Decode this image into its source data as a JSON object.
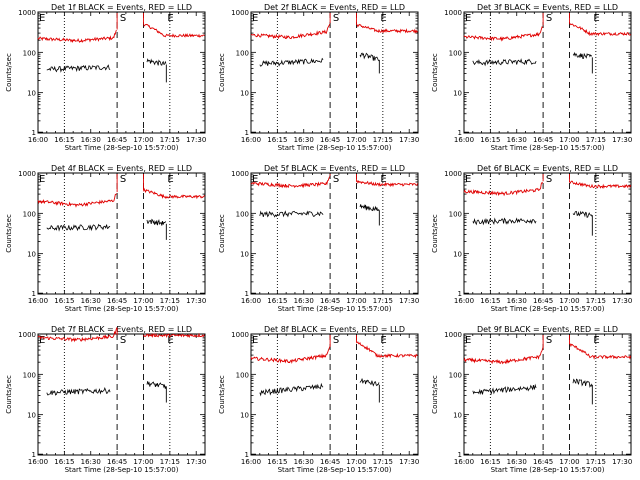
{
  "chart_data": {
    "type": "line",
    "layout": "3x3 grid",
    "shared": {
      "xlabel": "Start Time (28-Sep-10 15:57:00)",
      "ylabel": "Counts/sec",
      "xticks": [
        "16:00",
        "16:15",
        "16:30",
        "16:45",
        "17:00",
        "17:15",
        "17:30"
      ],
      "xlim_minutes_after_16_00": [
        0,
        95
      ],
      "yscale": "log",
      "ylim": [
        1,
        1000
      ],
      "yticks": [
        1,
        10,
        100,
        1000
      ],
      "dotted_verticals_min": [
        15,
        75
      ],
      "dashed_verticals_min": [
        45,
        60
      ],
      "markers": [
        {
          "label": "E",
          "at_min": 0
        },
        {
          "label": "S",
          "at_min": 46
        },
        {
          "label": "E",
          "at_min": 73
        }
      ],
      "gap_min": [
        45,
        60
      ],
      "series_colors": {
        "events": "#000000",
        "lld": "#e00000"
      }
    },
    "panels": [
      {
        "title": "Det 1f BLACK = Events, RED = LLD",
        "lld": {
          "start": 220,
          "mid": 195,
          "end": 230,
          "post_peak": 500,
          "post_end": 260
        },
        "events": {
          "start": 38,
          "end": 43,
          "after_start": 62,
          "after_end": 50,
          "drop_to": 18
        }
      },
      {
        "title": "Det 2f BLACK = Events, RED = LLD",
        "lld": {
          "start": 270,
          "mid": 235,
          "end": 330,
          "post_peak": 480,
          "post_end": 340
        },
        "events": {
          "start": 52,
          "end": 62,
          "after_start": 90,
          "after_end": 65,
          "drop_to": 30
        }
      },
      {
        "title": "Det 3f BLACK = Events, RED = LLD",
        "lld": {
          "start": 240,
          "mid": 215,
          "end": 290,
          "post_peak": 520,
          "post_end": 290
        },
        "events": {
          "start": 55,
          "end": 60,
          "after_start": 90,
          "after_end": 75,
          "drop_to": 30
        }
      },
      {
        "title": "Det 4f BLACK = Events, RED = LLD",
        "lld": {
          "start": 200,
          "mid": 160,
          "end": 210,
          "post_peak": 380,
          "post_end": 260
        },
        "events": {
          "start": 43,
          "end": 47,
          "after_start": 65,
          "after_end": 55,
          "drop_to": 22
        }
      },
      {
        "title": "Det 5f BLACK = Events, RED = LLD",
        "lld": {
          "start": 560,
          "mid": 480,
          "end": 540,
          "post_peak": 620,
          "post_end": 520
        },
        "events": {
          "start": 95,
          "end": 100,
          "after_start": 150,
          "after_end": 120,
          "drop_to": 50
        }
      },
      {
        "title": "Det 6f BLACK = Events, RED = LLD",
        "lld": {
          "start": 350,
          "mid": 310,
          "end": 390,
          "post_peak": 600,
          "post_end": 470
        },
        "events": {
          "start": 62,
          "end": 68,
          "after_start": 100,
          "after_end": 90,
          "drop_to": 28
        }
      },
      {
        "title": "Det 7f BLACK = Events, RED = LLD",
        "lld": {
          "start": 820,
          "mid": 720,
          "end": 880,
          "post_peak": 940,
          "post_end": 920
        },
        "events": {
          "start": 35,
          "end": 40,
          "after_start": 60,
          "after_end": 50,
          "drop_to": 20
        }
      },
      {
        "title": "Det 8f BLACK = Events, RED = LLD",
        "lld": {
          "start": 250,
          "mid": 210,
          "end": 300,
          "post_peak": 620,
          "post_end": 290
        },
        "events": {
          "start": 35,
          "end": 50,
          "after_start": 70,
          "after_end": 55,
          "drop_to": 20
        }
      },
      {
        "title": "Det 9f BLACK = Events, RED = LLD",
        "lld": {
          "start": 230,
          "mid": 200,
          "end": 280,
          "post_peak": 560,
          "post_end": 270
        },
        "events": {
          "start": 35,
          "end": 48,
          "after_start": 70,
          "after_end": 55,
          "drop_to": 18
        }
      }
    ]
  }
}
